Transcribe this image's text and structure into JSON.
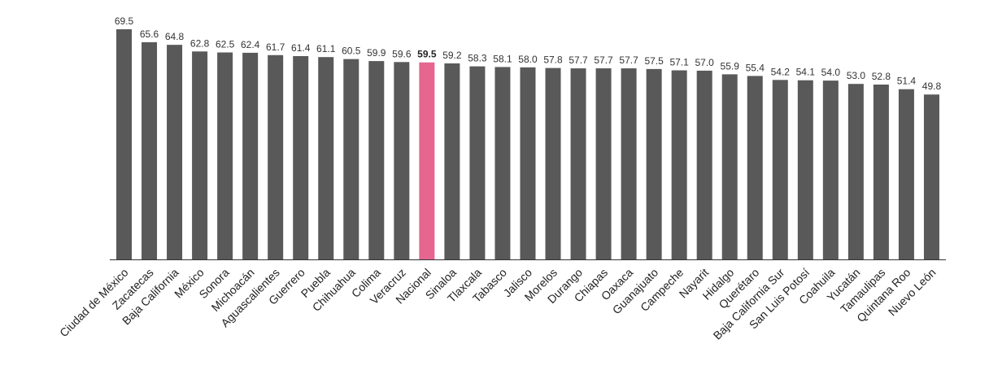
{
  "chart_data": {
    "type": "bar",
    "title": "",
    "xlabel": "",
    "ylabel": "",
    "ylim": [
      0,
      69.5
    ],
    "grid": false,
    "legend": "none",
    "highlight_category": "Nacional",
    "colors": {
      "bar": "#595959",
      "highlight": "#e5668f",
      "baseline": "#333333"
    },
    "categories": [
      "Ciudad de México",
      "Zacatecas",
      "Baja California",
      "México",
      "Sonora",
      "Michoacán",
      "Aguascalientes",
      "Guerrero",
      "Puebla",
      "Chihuahua",
      "Colima",
      "Veracruz",
      "Nacional",
      "Sinaloa",
      "Tlaxcala",
      "Tabasco",
      "Jalisco",
      "Morelos",
      "Durango",
      "Chiapas",
      "Oaxaca",
      "Guanajuato",
      "Campeche",
      "Nayarit",
      "Hidalgo",
      "Querétaro",
      "Baja California Sur",
      "San Luis Potosí",
      "Coahuila",
      "Yucatán",
      "Tamaulipas",
      "Quintana Roo",
      "Nuevo León"
    ],
    "values": [
      69.5,
      65.6,
      64.8,
      62.8,
      62.5,
      62.4,
      61.7,
      61.4,
      61.1,
      60.5,
      59.9,
      59.6,
      59.5,
      59.2,
      58.3,
      58.1,
      58.0,
      57.8,
      57.7,
      57.7,
      57.7,
      57.5,
      57.1,
      57.0,
      55.9,
      55.4,
      54.2,
      54.1,
      54.0,
      53.0,
      52.8,
      51.4,
      49.8
    ],
    "value_labels": [
      "69.5",
      "65.6",
      "64.8",
      "62.8",
      "62.5",
      "62.4",
      "61.7",
      "61.4",
      "61.1",
      "60.5",
      "59.9",
      "59.6",
      "59.5",
      "59.2",
      "58.3",
      "58.1",
      "58.0",
      "57.8",
      "57.7",
      "57.7",
      "57.7",
      "57.5",
      "57.1",
      "57.0",
      "55.9",
      "55.4",
      "54.2",
      "54.1",
      "54.0",
      "53.0",
      "52.8",
      "51.4",
      "49.8"
    ]
  }
}
